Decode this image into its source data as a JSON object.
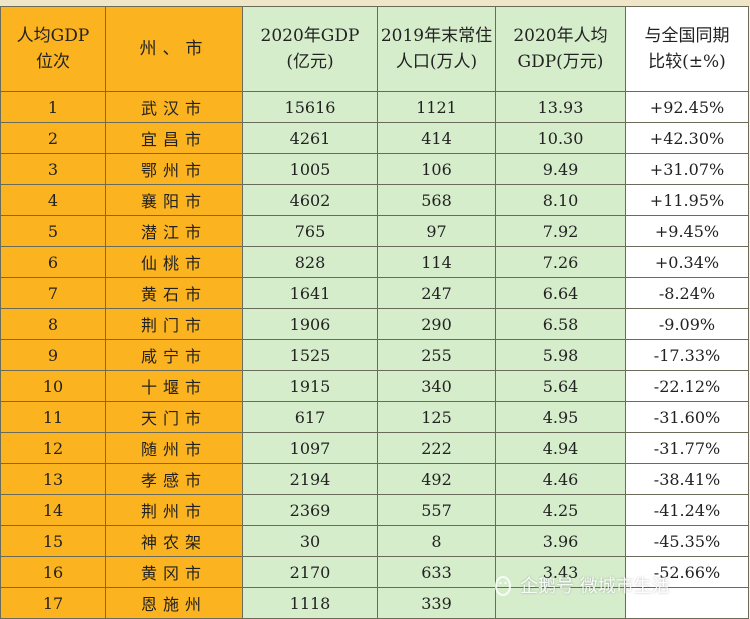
{
  "headers": {
    "rank": [
      "人均GDP",
      "位次"
    ],
    "city": "州、市",
    "gdp": [
      "2020年GDP",
      "(亿元)"
    ],
    "pop": [
      "2019年末常住",
      "人口(万人)"
    ],
    "pergdp": [
      "2020年人均",
      "GDP(万元)"
    ],
    "compare": [
      "与全国同期",
      "比较(±%)"
    ]
  },
  "rows": [
    {
      "rank": "1",
      "city": "武汉市",
      "gdp": "15616",
      "pop": "1121",
      "pergdp": "13.93",
      "compare": "+92.45%"
    },
    {
      "rank": "2",
      "city": "宜昌市",
      "gdp": "4261",
      "pop": "414",
      "pergdp": "10.30",
      "compare": "+42.30%"
    },
    {
      "rank": "3",
      "city": "鄂州市",
      "gdp": "1005",
      "pop": "106",
      "pergdp": "9.49",
      "compare": "+31.07%"
    },
    {
      "rank": "4",
      "city": "襄阳市",
      "gdp": "4602",
      "pop": "568",
      "pergdp": "8.10",
      "compare": "+11.95%"
    },
    {
      "rank": "5",
      "city": "潜江市",
      "gdp": "765",
      "pop": "97",
      "pergdp": "7.92",
      "compare": "+9.45%"
    },
    {
      "rank": "6",
      "city": "仙桃市",
      "gdp": "828",
      "pop": "114",
      "pergdp": "7.26",
      "compare": "+0.34%"
    },
    {
      "rank": "7",
      "city": "黄石市",
      "gdp": "1641",
      "pop": "247",
      "pergdp": "6.64",
      "compare": "-8.24%"
    },
    {
      "rank": "8",
      "city": "荆门市",
      "gdp": "1906",
      "pop": "290",
      "pergdp": "6.58",
      "compare": "-9.09%"
    },
    {
      "rank": "9",
      "city": "咸宁市",
      "gdp": "1525",
      "pop": "255",
      "pergdp": "5.98",
      "compare": "-17.33%"
    },
    {
      "rank": "10",
      "city": "十堰市",
      "gdp": "1915",
      "pop": "340",
      "pergdp": "5.64",
      "compare": "-22.12%"
    },
    {
      "rank": "11",
      "city": "天门市",
      "gdp": "617",
      "pop": "125",
      "pergdp": "4.95",
      "compare": "-31.60%"
    },
    {
      "rank": "12",
      "city": "随州市",
      "gdp": "1097",
      "pop": "222",
      "pergdp": "4.94",
      "compare": "-31.77%"
    },
    {
      "rank": "13",
      "city": "孝感市",
      "gdp": "2194",
      "pop": "492",
      "pergdp": "4.46",
      "compare": "-38.41%"
    },
    {
      "rank": "14",
      "city": "荆州市",
      "gdp": "2369",
      "pop": "557",
      "pergdp": "4.25",
      "compare": "-41.24%"
    },
    {
      "rank": "15",
      "city": "神农架",
      "gdp": "30",
      "pop": "8",
      "pergdp": "3.96",
      "compare": "-45.35%"
    },
    {
      "rank": "16",
      "city": "黄冈市",
      "gdp": "2170",
      "pop": "633",
      "pergdp": "3.43",
      "compare": "-52.66%"
    },
    {
      "rank": "17",
      "city": "恩施州",
      "gdp": "1118",
      "pop": "339",
      "pergdp": "",
      "compare": ""
    }
  ],
  "watermark": "企鹅号 微城市生活"
}
